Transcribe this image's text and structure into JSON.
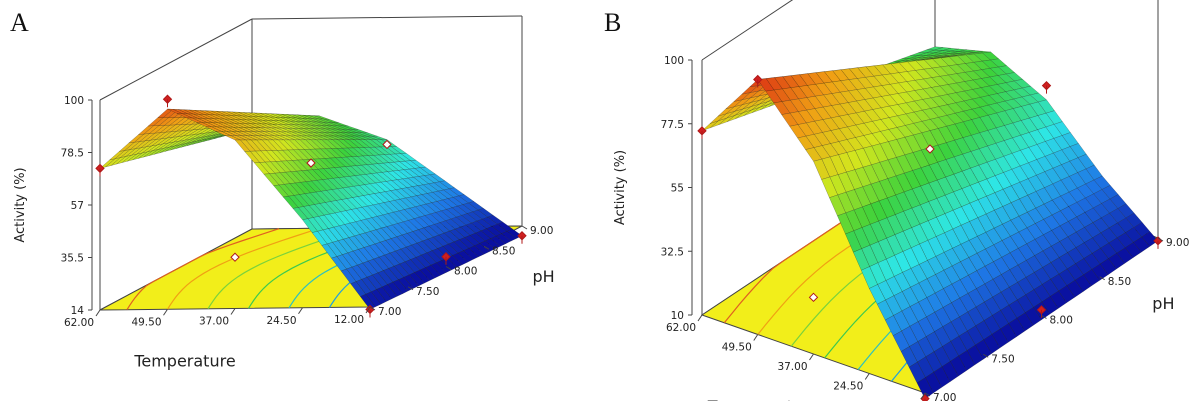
{
  "chart_data": [
    {
      "type": "surface3d",
      "panel_label": "A",
      "x_label": "Temperature",
      "y_label": "pH",
      "z_label": "Activity (%)",
      "x_ticks": [
        "62.00",
        "49.50",
        "37.00",
        "24.50",
        "12.00"
      ],
      "y_ticks": [
        "7.00",
        "7.50",
        "8.00",
        "8.50",
        "9.00"
      ],
      "z_ticks": [
        "14",
        "35.5",
        "57",
        "78.5",
        "100"
      ],
      "x_range": [
        12,
        62
      ],
      "y_range": [
        7,
        9
      ],
      "z_range": [
        14,
        100
      ],
      "surface": {
        "x": [
          12,
          24.5,
          37,
          49.5,
          62
        ],
        "y": [
          7,
          7.5,
          8,
          8.5,
          9
        ],
        "z_at_y7": [
          13,
          50,
          83,
          96,
          72
        ],
        "z_at_y9": [
          10,
          30,
          50,
          60,
          55
        ]
      },
      "design_points": [
        {
          "x": 62,
          "y": 7,
          "z": 72
        },
        {
          "x": 37,
          "y": 8,
          "z": 57
        },
        {
          "x": 12,
          "y": 7,
          "z": 13
        },
        {
          "x": 37,
          "y": 7,
          "z": 35
        },
        {
          "x": 12,
          "y": 8,
          "z": 18
        },
        {
          "x": 12,
          "y": 9,
          "z": 10
        },
        {
          "x": 37,
          "y": 9,
          "z": 48
        },
        {
          "x": 49.5,
          "y": 7,
          "z": 100
        }
      ],
      "colormap": [
        "#0a10a0",
        "#1e78e6",
        "#2ee6e6",
        "#3cd23c",
        "#d2e61e",
        "#f0a014",
        "#dc3214"
      ],
      "base_color": "#f2ee1a"
    },
    {
      "type": "surface3d",
      "panel_label": "B",
      "x_label": "Tepmperature",
      "y_label": "pH",
      "z_label": "Activity (%)",
      "x_ticks": [
        "62.00",
        "49.50",
        "37.00",
        "24.50",
        "12.00"
      ],
      "y_ticks": [
        "7.00",
        "7.50",
        "8.00",
        "8.50",
        "9.00"
      ],
      "z_ticks": [
        "10",
        "32.5",
        "55",
        "77.5",
        "100"
      ],
      "x_range": [
        12,
        62
      ],
      "y_range": [
        7,
        9
      ],
      "z_range": [
        10,
        100
      ],
      "surface": {
        "x": [
          12,
          24.5,
          37,
          49.5,
          62
        ],
        "y": [
          7,
          7.5,
          8,
          8.5,
          9
        ],
        "z_at_y7": [
          8,
          40,
          78,
          100,
          75
        ],
        "z_at_y9": [
          9,
          25,
          45,
          55,
          50
        ]
      },
      "design_points": [
        {
          "x": 62,
          "y": 7,
          "z": 75
        },
        {
          "x": 49.5,
          "y": 7,
          "z": 100
        },
        {
          "x": 37,
          "y": 8,
          "z": 55
        },
        {
          "x": 37,
          "y": 7,
          "z": 30
        },
        {
          "x": 12,
          "y": 8,
          "z": 12
        },
        {
          "x": 12,
          "y": 9,
          "z": 9
        },
        {
          "x": 37,
          "y": 9,
          "z": 50
        },
        {
          "x": 12,
          "y": 7,
          "z": 8
        }
      ],
      "colormap": [
        "#0a10a0",
        "#1e78e6",
        "#2ee6e6",
        "#3cd23c",
        "#d2e61e",
        "#f0a014",
        "#dc3214"
      ],
      "base_color": "#f2ee1a"
    }
  ]
}
